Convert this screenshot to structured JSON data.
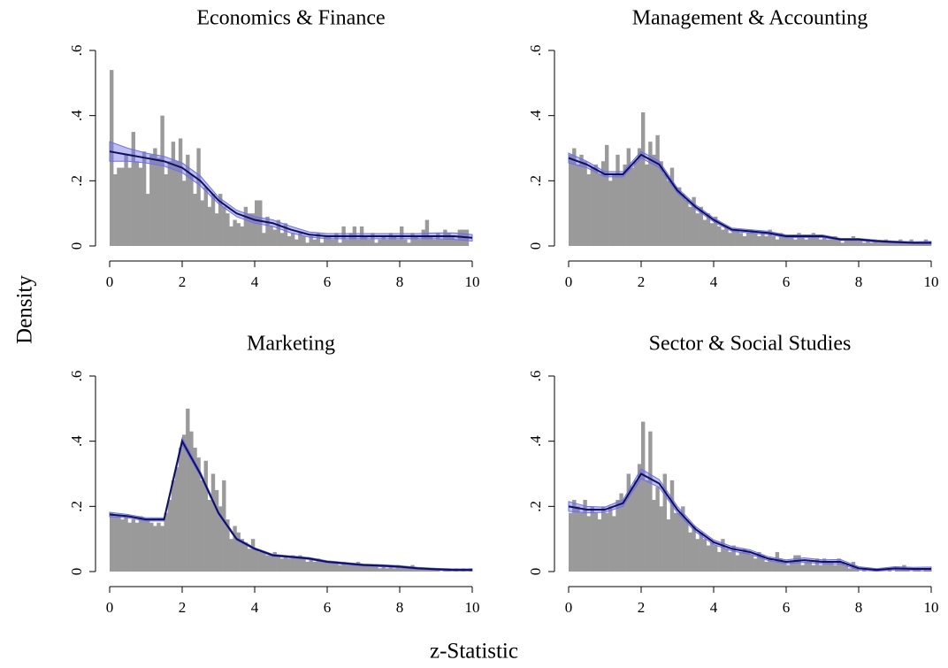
{
  "xlabel": "z-Statistic",
  "ylabel": "Density",
  "chart_data": [
    {
      "type": "histogram",
      "title": "Economics & Finance",
      "bins": [
        0,
        0.1,
        0.2,
        0.3,
        0.4,
        0.5,
        0.6,
        0.7,
        0.8,
        0.9,
        1,
        1.1,
        1.2,
        1.3,
        1.4,
        1.5,
        1.6,
        1.7,
        1.8,
        1.9,
        2,
        2.1,
        2.2,
        2.3,
        2.4,
        2.5,
        2.6,
        2.7,
        2.8,
        2.9,
        3,
        3.1,
        3.2,
        3.3,
        3.4,
        3.5,
        3.6,
        3.7,
        3.8,
        3.9,
        4,
        4.1,
        4.2,
        4.3,
        4.4,
        4.5,
        4.6,
        4.7,
        4.8,
        4.9,
        5,
        5.1,
        5.2,
        5.3,
        5.4,
        5.5,
        5.6,
        5.7,
        5.8,
        5.9,
        6,
        6.1,
        6.2,
        6.3,
        6.4,
        6.5,
        6.6,
        6.7,
        6.8,
        6.9,
        7,
        7.1,
        7.2,
        7.3,
        7.4,
        7.5,
        7.6,
        7.7,
        7.8,
        7.9,
        8,
        8.1,
        8.2,
        8.3,
        8.4,
        8.5,
        8.6,
        8.7,
        8.8,
        8.9,
        9,
        9.1,
        9.2,
        9.3,
        9.4,
        9.5,
        9.6,
        9.7,
        9.8,
        9.9,
        10
      ],
      "values": [
        0.54,
        0.22,
        0.24,
        0.24,
        0.28,
        0.24,
        0.35,
        0.26,
        0.24,
        0.29,
        0.16,
        0.28,
        0.3,
        0.27,
        0.4,
        0.22,
        0.26,
        0.32,
        0.26,
        0.33,
        0.2,
        0.28,
        0.22,
        0.16,
        0.3,
        0.14,
        0.18,
        0.12,
        0.16,
        0.1,
        0.16,
        0.12,
        0.1,
        0.06,
        0.08,
        0.07,
        0.06,
        0.12,
        0.1,
        0.1,
        0.14,
        0.14,
        0.04,
        0.09,
        0.06,
        0.05,
        0.08,
        0.04,
        0.07,
        0.03,
        0.04,
        0.02,
        0.04,
        0.03,
        0.01,
        0.03,
        0.02,
        0.04,
        0.01,
        0.03,
        0.03,
        0.02,
        0.04,
        0.01,
        0.06,
        0.02,
        0.04,
        0.06,
        0.02,
        0.06,
        0.03,
        0.02,
        0.04,
        0.01,
        0.02,
        0.03,
        0.02,
        0.04,
        0.03,
        0.02,
        0.06,
        0.02,
        0.01,
        0.04,
        0.03,
        0.02,
        0.05,
        0.08,
        0.03,
        0.02,
        0.04,
        0.02,
        0.05,
        0.04,
        0.03,
        0.02,
        0.05,
        0.05,
        0.05,
        0
      ],
      "color": "#9a9a9a",
      "density": {
        "color": "#10105a",
        "band_color": "#6f6fe8",
        "x": [
          0,
          0.5,
          1,
          1.5,
          2,
          2.5,
          3,
          3.5,
          4,
          4.5,
          5,
          5.5,
          6,
          6.5,
          7,
          7.5,
          8,
          8.5,
          9,
          9.5,
          10
        ],
        "values": [
          0.29,
          0.28,
          0.27,
          0.26,
          0.24,
          0.2,
          0.14,
          0.1,
          0.08,
          0.07,
          0.05,
          0.035,
          0.03,
          0.03,
          0.03,
          0.03,
          0.03,
          0.03,
          0.03,
          0.03,
          0.025
        ],
        "lower": [
          0.26,
          0.26,
          0.255,
          0.245,
          0.225,
          0.185,
          0.13,
          0.09,
          0.07,
          0.06,
          0.04,
          0.027,
          0.022,
          0.022,
          0.022,
          0.022,
          0.022,
          0.022,
          0.022,
          0.02,
          0.015
        ],
        "upper": [
          0.32,
          0.3,
          0.285,
          0.275,
          0.255,
          0.215,
          0.15,
          0.11,
          0.09,
          0.08,
          0.06,
          0.043,
          0.038,
          0.038,
          0.038,
          0.038,
          0.038,
          0.038,
          0.04,
          0.04,
          0.035
        ]
      },
      "xlim": [
        0,
        10
      ],
      "ylim": [
        0,
        0.6
      ],
      "xticks": [
        0,
        2,
        4,
        6,
        8,
        10
      ],
      "yticks": [
        0,
        {
          "value": 0.2,
          "label": ".2"
        },
        {
          "value": 0.4,
          "label": ".4"
        },
        {
          "value": 0.6,
          "label": ".6"
        }
      ]
    },
    {
      "type": "histogram",
      "title": "Management & Accounting",
      "bins": [
        0,
        0.1,
        0.2,
        0.3,
        0.4,
        0.5,
        0.6,
        0.7,
        0.8,
        0.9,
        1,
        1.1,
        1.2,
        1.3,
        1.4,
        1.5,
        1.6,
        1.7,
        1.8,
        1.9,
        2,
        2.1,
        2.2,
        2.3,
        2.4,
        2.5,
        2.6,
        2.7,
        2.8,
        2.9,
        3,
        3.1,
        3.2,
        3.3,
        3.4,
        3.5,
        3.6,
        3.7,
        3.8,
        3.9,
        4,
        4.1,
        4.2,
        4.3,
        4.4,
        4.5,
        4.6,
        4.7,
        4.8,
        4.9,
        5,
        5.1,
        5.2,
        5.3,
        5.4,
        5.5,
        5.6,
        5.7,
        5.8,
        5.9,
        6,
        6.1,
        6.2,
        6.3,
        6.4,
        6.5,
        6.6,
        6.7,
        6.8,
        6.9,
        7,
        7.1,
        7.2,
        7.3,
        7.4,
        7.5,
        7.6,
        7.7,
        7.8,
        7.9,
        8,
        8.1,
        8.2,
        8.3,
        8.4,
        8.5,
        8.6,
        8.7,
        8.8,
        8.9,
        9,
        9.1,
        9.2,
        9.3,
        9.4,
        9.5,
        9.6,
        9.7,
        9.8,
        9.9,
        10
      ],
      "values": [
        0.28,
        0.3,
        0.25,
        0.28,
        0.26,
        0.22,
        0.24,
        0.25,
        0.22,
        0.26,
        0.31,
        0.2,
        0.22,
        0.28,
        0.22,
        0.25,
        0.3,
        0.24,
        0.26,
        0.3,
        0.41,
        0.25,
        0.32,
        0.28,
        0.34,
        0.26,
        0.22,
        0.2,
        0.24,
        0.18,
        0.18,
        0.16,
        0.14,
        0.12,
        0.15,
        0.1,
        0.12,
        0.08,
        0.1,
        0.07,
        0.09,
        0.06,
        0.05,
        0.06,
        0.04,
        0.05,
        0.05,
        0.04,
        0.03,
        0.04,
        0.05,
        0.04,
        0.03,
        0.04,
        0.03,
        0.05,
        0.03,
        0.02,
        0.04,
        0.03,
        0.03,
        0.03,
        0.02,
        0.04,
        0.03,
        0.02,
        0.03,
        0.04,
        0.03,
        0.02,
        0.03,
        0.02,
        0.02,
        0.03,
        0.02,
        0.01,
        0.02,
        0.02,
        0.03,
        0.02,
        0.02,
        0.01,
        0.02,
        0.01,
        0.02,
        0.01,
        0.01,
        0.02,
        0.01,
        0.01,
        0.01,
        0.02,
        0.01,
        0.01,
        0.02,
        0.01,
        0.01,
        0.01,
        0.02,
        0.01
      ],
      "color": "#9a9a9a",
      "density": {
        "color": "#10105a",
        "band_color": "#6f6fe8",
        "x": [
          0,
          0.5,
          1,
          1.5,
          2,
          2.5,
          3,
          3.5,
          4,
          4.5,
          5,
          5.5,
          6,
          6.5,
          7,
          7.5,
          8,
          8.5,
          9,
          9.5,
          10
        ],
        "values": [
          0.27,
          0.25,
          0.22,
          0.22,
          0.28,
          0.25,
          0.17,
          0.12,
          0.08,
          0.05,
          0.045,
          0.04,
          0.03,
          0.03,
          0.03,
          0.02,
          0.02,
          0.015,
          0.012,
          0.01,
          0.01
        ],
        "lower": [
          0.255,
          0.24,
          0.212,
          0.212,
          0.27,
          0.24,
          0.162,
          0.113,
          0.074,
          0.045,
          0.04,
          0.035,
          0.026,
          0.026,
          0.026,
          0.017,
          0.017,
          0.012,
          0.009,
          0.007,
          0.006
        ],
        "upper": [
          0.285,
          0.26,
          0.228,
          0.228,
          0.29,
          0.26,
          0.178,
          0.127,
          0.086,
          0.055,
          0.05,
          0.045,
          0.034,
          0.034,
          0.034,
          0.023,
          0.023,
          0.018,
          0.015,
          0.013,
          0.014
        ]
      },
      "xlim": [
        0,
        10
      ],
      "ylim": [
        0,
        0.6
      ],
      "xticks": [
        0,
        2,
        4,
        6,
        8,
        10
      ],
      "yticks": [
        0,
        {
          "value": 0.2,
          "label": ".2"
        },
        {
          "value": 0.4,
          "label": ".4"
        },
        {
          "value": 0.6,
          "label": ".6"
        }
      ]
    },
    {
      "type": "histogram",
      "title": "Marketing",
      "bins": [
        0,
        0.1,
        0.2,
        0.3,
        0.4,
        0.5,
        0.6,
        0.7,
        0.8,
        0.9,
        1,
        1.1,
        1.2,
        1.3,
        1.4,
        1.5,
        1.6,
        1.7,
        1.8,
        1.9,
        2,
        2.1,
        2.2,
        2.3,
        2.4,
        2.5,
        2.6,
        2.7,
        2.8,
        2.9,
        3,
        3.1,
        3.2,
        3.3,
        3.4,
        3.5,
        3.6,
        3.7,
        3.8,
        3.9,
        4,
        4.1,
        4.2,
        4.3,
        4.4,
        4.5,
        4.6,
        4.7,
        4.8,
        4.9,
        5,
        5.1,
        5.2,
        5.3,
        5.4,
        5.5,
        5.6,
        5.7,
        5.8,
        5.9,
        6,
        6.1,
        6.2,
        6.3,
        6.4,
        6.5,
        6.6,
        6.7,
        6.8,
        6.9,
        7,
        7.1,
        7.2,
        7.3,
        7.4,
        7.5,
        7.6,
        7.7,
        7.8,
        7.9,
        8,
        8.1,
        8.2,
        8.3,
        8.4,
        8.5,
        8.6,
        8.7,
        8.8,
        8.9,
        9,
        9.1,
        9.2,
        9.3,
        9.4,
        9.5,
        9.6,
        9.7,
        9.8,
        9.9,
        10
      ],
      "values": [
        0.18,
        0.17,
        0.17,
        0.16,
        0.17,
        0.15,
        0.16,
        0.15,
        0.17,
        0.16,
        0.16,
        0.15,
        0.14,
        0.15,
        0.14,
        0.18,
        0.22,
        0.28,
        0.32,
        0.38,
        0.42,
        0.5,
        0.43,
        0.38,
        0.35,
        0.28,
        0.34,
        0.22,
        0.3,
        0.25,
        0.2,
        0.28,
        0.16,
        0.1,
        0.14,
        0.12,
        0.1,
        0.09,
        0.07,
        0.1,
        0.07,
        0.06,
        0.06,
        0.05,
        0.05,
        0.06,
        0.05,
        0.04,
        0.05,
        0.04,
        0.05,
        0.04,
        0.05,
        0.04,
        0.03,
        0.04,
        0.03,
        0.04,
        0.03,
        0.03,
        0.03,
        0.03,
        0.03,
        0.02,
        0.03,
        0.02,
        0.02,
        0.02,
        0.03,
        0.02,
        0.02,
        0.02,
        0.02,
        0.02,
        0.01,
        0.02,
        0.01,
        0.02,
        0.01,
        0.02,
        0.01,
        0.01,
        0.01,
        0.02,
        0.01,
        0.01,
        0.01,
        0.01,
        0.01,
        0.01,
        0.01,
        0,
        0.01,
        0.01,
        0,
        0.01,
        0,
        0.01,
        0,
        0.01
      ],
      "color": "#9a9a9a",
      "density": {
        "color": "#10105a",
        "band_color": "#6f6fe8",
        "x": [
          0,
          0.5,
          1,
          1.5,
          2,
          2.5,
          3,
          3.5,
          4,
          4.5,
          5,
          5.5,
          6,
          6.5,
          7,
          7.5,
          8,
          8.5,
          9,
          9.5,
          10
        ],
        "values": [
          0.175,
          0.17,
          0.16,
          0.16,
          0.4,
          0.3,
          0.18,
          0.1,
          0.07,
          0.05,
          0.045,
          0.04,
          0.03,
          0.025,
          0.02,
          0.018,
          0.015,
          0.01,
          0.007,
          0.005,
          0.005
        ],
        "lower": [
          0.168,
          0.165,
          0.155,
          0.155,
          0.39,
          0.293,
          0.175,
          0.096,
          0.067,
          0.047,
          0.042,
          0.037,
          0.027,
          0.022,
          0.017,
          0.015,
          0.012,
          0.007,
          0.004,
          0.002,
          0.002
        ],
        "upper": [
          0.182,
          0.175,
          0.165,
          0.165,
          0.41,
          0.307,
          0.185,
          0.104,
          0.073,
          0.053,
          0.048,
          0.043,
          0.033,
          0.028,
          0.023,
          0.021,
          0.018,
          0.013,
          0.01,
          0.008,
          0.008
        ]
      },
      "xlim": [
        0,
        10
      ],
      "ylim": [
        0,
        0.6
      ],
      "xticks": [
        0,
        2,
        4,
        6,
        8,
        10
      ],
      "yticks": [
        0,
        {
          "value": 0.2,
          "label": ".2"
        },
        {
          "value": 0.4,
          "label": ".4"
        },
        {
          "value": 0.6,
          "label": ".6"
        }
      ]
    },
    {
      "type": "histogram",
      "title": "Sector & Social Studies",
      "bins": [
        0,
        0.1,
        0.2,
        0.3,
        0.4,
        0.5,
        0.6,
        0.7,
        0.8,
        0.9,
        1,
        1.1,
        1.2,
        1.3,
        1.4,
        1.5,
        1.6,
        1.7,
        1.8,
        1.9,
        2,
        2.1,
        2.2,
        2.3,
        2.4,
        2.5,
        2.6,
        2.7,
        2.8,
        2.9,
        3,
        3.1,
        3.2,
        3.3,
        3.4,
        3.5,
        3.6,
        3.7,
        3.8,
        3.9,
        4,
        4.1,
        4.2,
        4.3,
        4.4,
        4.5,
        4.6,
        4.7,
        4.8,
        4.9,
        5,
        5.1,
        5.2,
        5.3,
        5.4,
        5.5,
        5.6,
        5.7,
        5.8,
        5.9,
        6,
        6.1,
        6.2,
        6.3,
        6.4,
        6.5,
        6.6,
        6.7,
        6.8,
        6.9,
        7,
        7.1,
        7.2,
        7.3,
        7.4,
        7.5,
        7.6,
        7.7,
        7.8,
        7.9,
        8,
        8.1,
        8.2,
        8.3,
        8.4,
        8.5,
        8.6,
        8.7,
        8.8,
        8.9,
        9,
        9.1,
        9.2,
        9.3,
        9.4,
        9.5,
        9.6,
        9.7,
        9.8,
        9.9,
        10
      ],
      "values": [
        0.18,
        0.22,
        0.2,
        0.18,
        0.22,
        0.17,
        0.2,
        0.18,
        0.16,
        0.2,
        0.18,
        0.2,
        0.17,
        0.22,
        0.24,
        0.22,
        0.3,
        0.26,
        0.28,
        0.33,
        0.46,
        0.28,
        0.43,
        0.22,
        0.26,
        0.2,
        0.3,
        0.16,
        0.28,
        0.18,
        0.18,
        0.2,
        0.16,
        0.12,
        0.14,
        0.1,
        0.12,
        0.1,
        0.08,
        0.09,
        0.08,
        0.06,
        0.1,
        0.07,
        0.06,
        0.08,
        0.05,
        0.06,
        0.07,
        0.06,
        0.05,
        0.04,
        0.06,
        0.05,
        0.03,
        0.04,
        0.03,
        0.06,
        0.04,
        0.03,
        0.02,
        0.03,
        0.05,
        0.05,
        0.02,
        0.03,
        0.03,
        0.02,
        0.04,
        0.02,
        0.04,
        0.03,
        0.03,
        0.02,
        0.04,
        0.03,
        0.02,
        0.01,
        0.03,
        0.01,
        0,
        0.01,
        0,
        0,
        0.01,
        0,
        0,
        0,
        0.01,
        0,
        0.01,
        0.01,
        0.02,
        0.01,
        0,
        0.01,
        0.01,
        0,
        0.01,
        0.01
      ],
      "color": "#9a9a9a",
      "density": {
        "color": "#10105a",
        "band_color": "#6f6fe8",
        "x": [
          0,
          0.5,
          1,
          1.5,
          2,
          2.5,
          3,
          3.5,
          4,
          4.5,
          5,
          5.5,
          6,
          6.5,
          7,
          7.5,
          8,
          8.5,
          9,
          9.5,
          10
        ],
        "values": [
          0.2,
          0.19,
          0.19,
          0.21,
          0.3,
          0.27,
          0.19,
          0.13,
          0.09,
          0.07,
          0.06,
          0.04,
          0.03,
          0.035,
          0.03,
          0.03,
          0.01,
          0.005,
          0.01,
          0.008,
          0.008
        ],
        "lower": [
          0.185,
          0.18,
          0.182,
          0.2,
          0.285,
          0.258,
          0.18,
          0.122,
          0.083,
          0.063,
          0.053,
          0.034,
          0.024,
          0.028,
          0.024,
          0.023,
          0.005,
          0.001,
          0.005,
          0.003,
          0.002
        ],
        "upper": [
          0.215,
          0.2,
          0.198,
          0.22,
          0.315,
          0.282,
          0.2,
          0.138,
          0.097,
          0.077,
          0.067,
          0.046,
          0.036,
          0.042,
          0.036,
          0.037,
          0.015,
          0.009,
          0.015,
          0.013,
          0.014
        ]
      },
      "xlim": [
        0,
        10
      ],
      "ylim": [
        0,
        0.6
      ],
      "xticks": [
        0,
        2,
        4,
        6,
        8,
        10
      ],
      "yticks": [
        0,
        {
          "value": 0.2,
          "label": ".2"
        },
        {
          "value": 0.4,
          "label": ".4"
        },
        {
          "value": 0.6,
          "label": ".6"
        }
      ]
    }
  ]
}
